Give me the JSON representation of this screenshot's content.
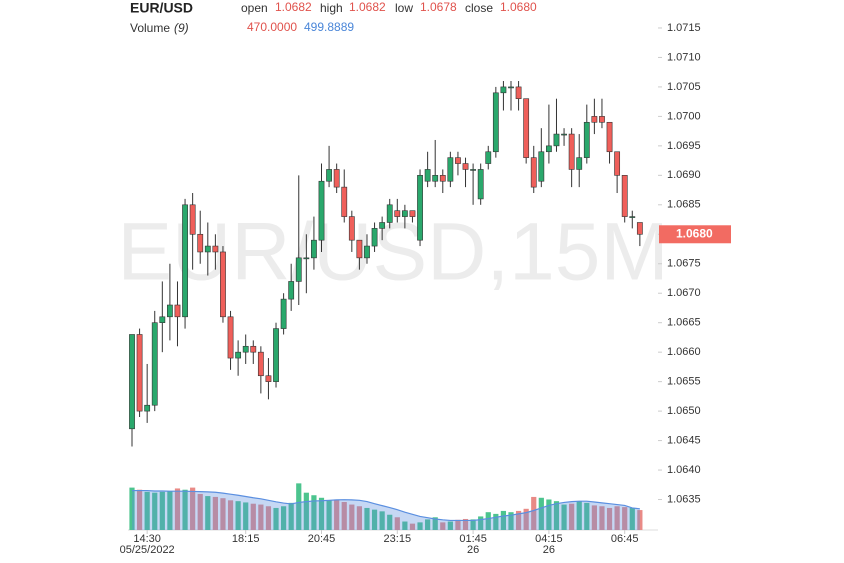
{
  "header": {
    "symbol": "EUR/USD",
    "open_label": "open",
    "open": "1.0682",
    "high_label": "high",
    "high": "1.0682",
    "low_label": "low",
    "low": "1.0678",
    "close_label": "close",
    "close": "1.0680",
    "volume_label": "Volume",
    "volume_period": "(9)",
    "volume": "470.0000",
    "volume_ma": "499.8889"
  },
  "watermark": "EUR/USD,15M",
  "chart_data": {
    "type": "candlestick",
    "categories": [
      null,
      null,
      "14:30",
      null,
      null,
      null,
      null,
      null,
      null,
      null,
      null,
      null,
      null,
      null,
      null,
      "18:15",
      null,
      null,
      null,
      null,
      null,
      null,
      null,
      null,
      null,
      "20:45",
      null,
      null,
      null,
      null,
      null,
      null,
      null,
      null,
      null,
      "23:15",
      null,
      null,
      null,
      null,
      null,
      null,
      null,
      null,
      null,
      "01:45",
      null,
      null,
      null,
      null,
      null,
      null,
      null,
      null,
      null,
      "04:15",
      null,
      null,
      null,
      null,
      null,
      null,
      null,
      null,
      null,
      "06:45",
      null,
      null
    ],
    "x_dates": [
      null,
      null,
      "05/25/2022",
      null,
      null,
      null,
      null,
      null,
      null,
      null,
      null,
      null,
      null,
      null,
      null,
      null,
      null,
      null,
      null,
      null,
      null,
      null,
      null,
      null,
      null,
      null,
      null,
      null,
      null,
      null,
      null,
      null,
      null,
      null,
      null,
      null,
      null,
      null,
      null,
      null,
      null,
      null,
      null,
      null,
      null,
      "26",
      null,
      null,
      null,
      null,
      null,
      null,
      null,
      null,
      null,
      "26",
      null,
      null,
      null,
      null,
      null,
      null,
      null,
      null,
      null,
      null,
      null,
      null
    ],
    "open": [
      1.0647,
      1.0663,
      1.065,
      1.0651,
      1.0665,
      1.0666,
      1.0668,
      1.0666,
      1.0685,
      1.068,
      1.0677,
      1.0678,
      1.0677,
      1.0666,
      1.0659,
      1.066,
      1.0661,
      1.066,
      1.0656,
      1.0655,
      1.0664,
      1.0669,
      1.0672,
      1.0676,
      1.0676,
      1.0679,
      1.0689,
      1.0691,
      1.0688,
      1.0683,
      1.0679,
      1.0676,
      1.0678,
      1.0681,
      1.0682,
      1.0684,
      1.0683,
      1.0684,
      1.0679,
      1.0689,
      1.0689,
      1.069,
      1.0689,
      1.0693,
      1.0692,
      1.0691,
      1.0686,
      1.0692,
      1.0694,
      1.0704,
      1.0705,
      1.0705,
      1.0703,
      1.0693,
      1.0689,
      1.0694,
      1.0695,
      1.0697,
      1.0697,
      1.0691,
      1.0693,
      1.07,
      1.07,
      1.0699,
      1.0694,
      1.069,
      1.0683,
      1.0682
    ],
    "high": [
      1.0663,
      1.0664,
      1.0658,
      1.0667,
      1.0672,
      1.0675,
      1.0672,
      1.0686,
      1.0687,
      1.0684,
      1.0682,
      1.068,
      1.0678,
      1.0667,
      1.0662,
      1.0663,
      1.0662,
      1.0661,
      1.0659,
      1.0665,
      1.067,
      1.0675,
      1.069,
      1.068,
      1.0683,
      1.0692,
      1.0695,
      1.0692,
      1.0691,
      1.0684,
      1.0679,
      1.068,
      1.0682,
      1.0683,
      1.0686,
      1.0686,
      1.0685,
      1.0684,
      1.0691,
      1.0694,
      1.0696,
      1.0691,
      1.0694,
      1.0694,
      1.0693,
      1.0692,
      1.0692,
      1.0695,
      1.0705,
      1.0706,
      1.0706,
      1.0706,
      1.0703,
      1.0695,
      1.0698,
      1.0702,
      1.0703,
      1.0698,
      1.0698,
      1.0697,
      1.0702,
      1.0703,
      1.0703,
      1.0699,
      1.0694,
      1.069,
      1.0684,
      1.0682
    ],
    "low": [
      1.0644,
      1.0649,
      1.0648,
      1.065,
      1.066,
      1.0662,
      1.0661,
      1.0664,
      1.0674,
      1.0675,
      1.0673,
      1.0674,
      1.0665,
      1.0657,
      1.0656,
      1.0658,
      1.0658,
      1.0653,
      1.0652,
      1.0654,
      1.0663,
      1.0667,
      1.0668,
      1.067,
      1.0674,
      1.0677,
      1.0688,
      1.0687,
      1.0682,
      1.0677,
      1.0674,
      1.0675,
      1.0677,
      1.0679,
      1.0681,
      1.0682,
      1.0681,
      1.0682,
      1.0678,
      1.0688,
      1.0688,
      1.0687,
      1.0688,
      1.069,
      1.0688,
      1.0685,
      1.0685,
      1.0691,
      1.0693,
      1.0701,
      1.0701,
      1.0701,
      1.0692,
      1.0687,
      1.0688,
      1.0692,
      1.0694,
      1.0695,
      1.0688,
      1.0688,
      1.0692,
      1.0697,
      1.0698,
      1.0692,
      1.0687,
      1.0682,
      1.0681,
      1.0678
    ],
    "close": [
      1.0663,
      1.065,
      1.0651,
      1.0665,
      1.0666,
      1.0668,
      1.0666,
      1.0685,
      1.068,
      1.0677,
      1.0678,
      1.0677,
      1.0666,
      1.0659,
      1.066,
      1.0661,
      1.066,
      1.0656,
      1.0655,
      1.0664,
      1.0669,
      1.0672,
      1.0676,
      1.0676,
      1.0679,
      1.0689,
      1.0691,
      1.0688,
      1.0683,
      1.0679,
      1.0676,
      1.0678,
      1.0681,
      1.0682,
      1.0685,
      1.0683,
      1.0684,
      1.0683,
      1.069,
      1.0691,
      1.069,
      1.0689,
      1.0693,
      1.0692,
      1.0691,
      1.0691,
      1.0691,
      1.0694,
      1.0704,
      1.0705,
      1.0705,
      1.0703,
      1.0693,
      1.0688,
      1.0694,
      1.0695,
      1.0697,
      1.0697,
      1.0691,
      1.0693,
      1.0699,
      1.0699,
      1.0699,
      1.0694,
      1.069,
      1.0683,
      1.0683,
      1.068
    ],
    "volume": [
      1000,
      950,
      900,
      880,
      900,
      920,
      980,
      950,
      1000,
      850,
      800,
      780,
      750,
      700,
      680,
      650,
      620,
      600,
      560,
      520,
      560,
      640,
      1100,
      880,
      820,
      760,
      700,
      720,
      660,
      600,
      560,
      520,
      480,
      440,
      360,
      300,
      200,
      150,
      180,
      250,
      300,
      180,
      200,
      240,
      260,
      250,
      320,
      420,
      380,
      450,
      420,
      450,
      500,
      780,
      760,
      720,
      680,
      600,
      620,
      680,
      640,
      580,
      560,
      520,
      560,
      540,
      520,
      470
    ],
    "volume_ma": [
      930,
      930,
      930,
      920,
      920,
      915,
      915,
      915,
      910,
      905,
      900,
      890,
      870,
      845,
      820,
      790,
      760,
      735,
      700,
      665,
      635,
      615,
      650,
      670,
      685,
      690,
      700,
      710,
      715,
      710,
      700,
      670,
      620,
      575,
      530,
      480,
      420,
      370,
      320,
      290,
      260,
      240,
      225,
      225,
      225,
      225,
      245,
      270,
      300,
      330,
      350,
      380,
      410,
      460,
      520,
      580,
      620,
      650,
      670,
      680,
      680,
      660,
      640,
      620,
      600,
      580,
      520,
      499.8889
    ],
    "up_color": "#2aa86c",
    "down_color": "#ef5f5a",
    "volume_up_color": "#4cc48e",
    "volume_down_color": "#e98a86",
    "ma_color": "#5b8fe0",
    "ylim": [
      1.063,
      1.072
    ],
    "volume_ylim": [
      0,
      1250
    ],
    "yticks": [
      1.0715,
      {
        "value": 1.071,
        "label": "1.0710"
      },
      1.0705,
      {
        "value": 1.07,
        "label": "1.0700"
      },
      1.0695,
      {
        "value": 1.069,
        "label": "1.0690"
      },
      1.0685,
      {
        "value": 1.068,
        "label": "1.0680"
      },
      1.0675,
      {
        "value": 1.067,
        "label": "1.0670"
      },
      1.0665,
      {
        "value": 1.066,
        "label": "1.0660"
      },
      1.0655,
      {
        "value": 1.065,
        "label": "1.0650"
      },
      1.0645,
      {
        "value": 1.064,
        "label": "1.0640"
      },
      1.0635
    ],
    "last_price": {
      "value": 1.068,
      "label": "1.0680"
    }
  }
}
